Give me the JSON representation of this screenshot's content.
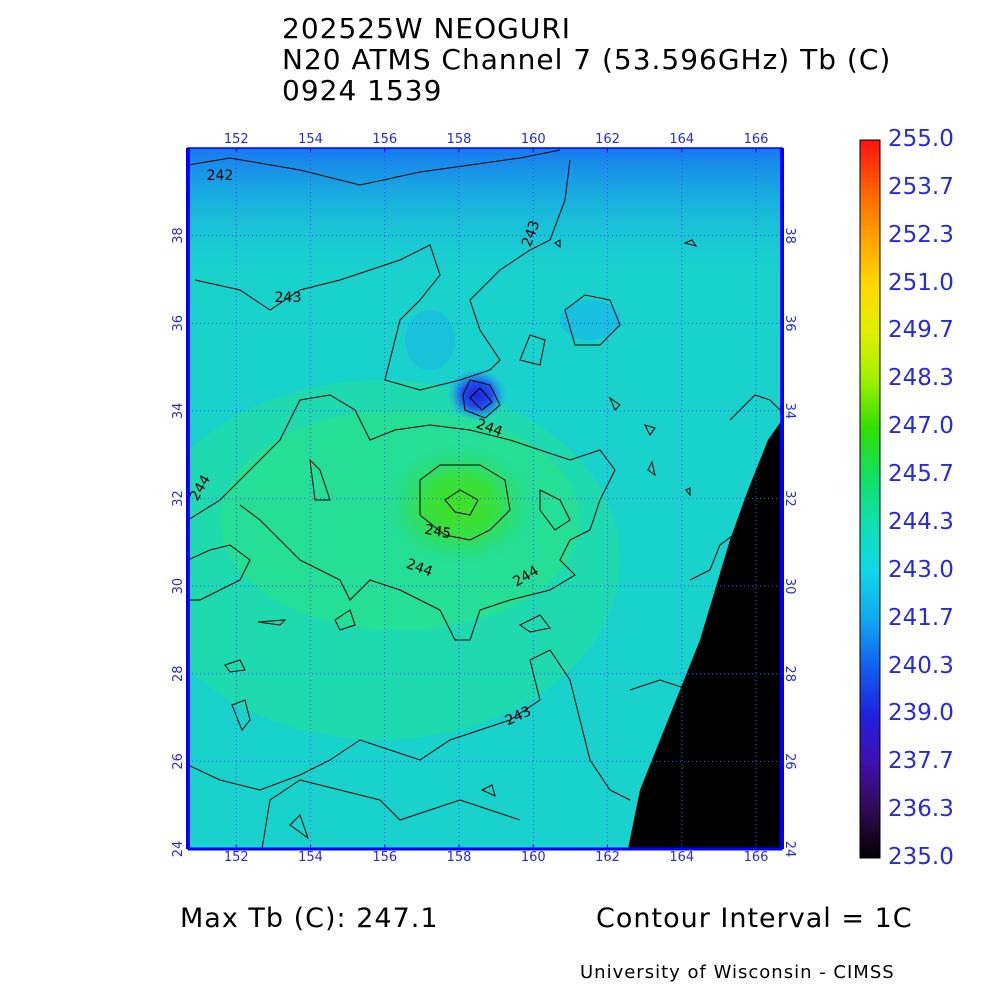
{
  "title": {
    "storm": "202525W NEOGURI",
    "sensor": "N20 ATMS Channel 7 (53.596GHz) Tb (C)",
    "datetime": "0924 1539"
  },
  "map": {
    "lon_ticks": [
      "152",
      "154",
      "156",
      "158",
      "160",
      "162",
      "164",
      "166"
    ],
    "lat_ticks": [
      "24",
      "26",
      "28",
      "30",
      "32",
      "34",
      "36",
      "38"
    ],
    "lon_range": [
      150.7,
      166.7
    ],
    "lat_range": [
      24,
      40
    ],
    "contour_labels": [
      "242",
      "243",
      "243",
      "244",
      "244",
      "244",
      "244",
      "245",
      "243"
    ],
    "land_color": "#000000",
    "grid_color": "#3050ff"
  },
  "colorbar": {
    "labels": [
      "255.0",
      "253.7",
      "252.3",
      "251.0",
      "249.7",
      "248.3",
      "247.0",
      "245.7",
      "244.3",
      "243.0",
      "241.7",
      "240.3",
      "239.0",
      "237.7",
      "236.3",
      "235.0"
    ],
    "colors": [
      "#ff1010",
      "#ff6000",
      "#ffa000",
      "#ffd800",
      "#e0f000",
      "#a0f000",
      "#30e000",
      "#10e060",
      "#10e0b0",
      "#10d8e8",
      "#10a8f0",
      "#1060f0",
      "#2020e0",
      "#4010b0",
      "#300a50",
      "#000000"
    ]
  },
  "footer": {
    "max_tb": "Max Tb (C): 247.1",
    "contour_interval": "Contour Interval = 1C",
    "credit": "University of Wisconsin - CIMSS"
  }
}
